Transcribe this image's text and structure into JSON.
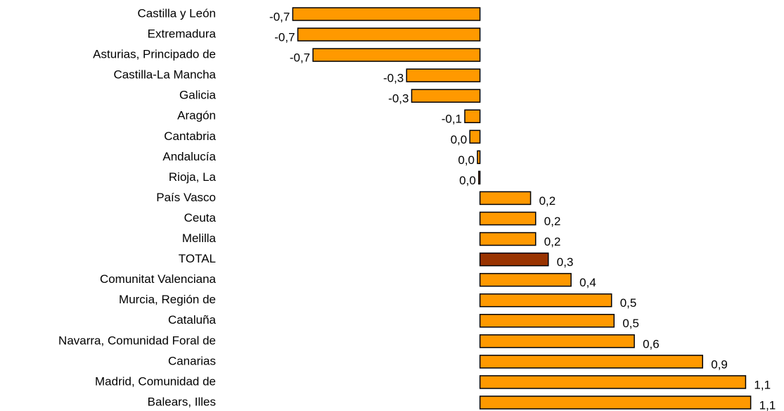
{
  "chart_data": {
    "type": "barh",
    "categories": [
      "Castilla y León",
      "Extremadura",
      "Asturias, Principado de",
      "Castilla-La Mancha",
      "Galicia",
      "Aragón",
      "Cantabria",
      "Andalucía",
      "Rioja, La",
      "País Vasco",
      "Ceuta ",
      "Melilla",
      "TOTAL",
      "Comunitat Valenciana",
      "Murcia, Región de",
      "Cataluña",
      "Navarra, Comunidad Foral de",
      "Canarias",
      "Madrid, Comunidad de",
      "Balears, Illes"
    ],
    "values": [
      -0.74,
      -0.72,
      -0.66,
      -0.29,
      -0.27,
      -0.06,
      -0.04,
      -0.01,
      -0.005,
      0.2,
      0.22,
      0.22,
      0.27,
      0.36,
      0.52,
      0.53,
      0.61,
      0.88,
      1.05,
      1.07
    ],
    "value_labels": [
      "-0,7",
      "-0,7",
      "-0,7",
      "-0,3",
      "-0,3",
      "-0,1",
      "0,0",
      "0,0",
      "0,0",
      "0,2",
      "0,2",
      "0,2",
      "0,3",
      "0,4",
      "0,5",
      "0,5",
      "0,6",
      "0,9",
      "1,1",
      "1,1"
    ],
    "colors": [
      "#ff9900",
      "#ff9900",
      "#ff9900",
      "#ff9900",
      "#ff9900",
      "#ff9900",
      "#ff9900",
      "#ff9900",
      "#ff9900",
      "#ff9900",
      "#ff9900",
      "#ff9900",
      "#993300",
      "#ff9900",
      "#ff9900",
      "#ff9900",
      "#ff9900",
      "#ff9900",
      "#ff9900",
      "#ff9900"
    ],
    "xlim": [
      -0.98,
      1.16
    ]
  }
}
